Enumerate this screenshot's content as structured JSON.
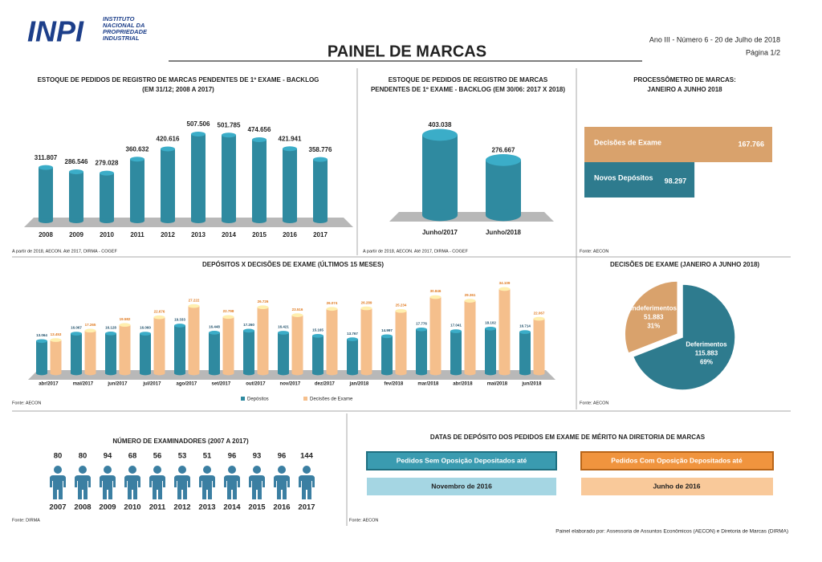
{
  "header": {
    "logo": "INPI",
    "institute": [
      "INSTITUTO",
      "NACIONAL DA",
      "PROPRIEDADE",
      "INDUSTRIAL"
    ],
    "title": "PAINEL DE MARCAS",
    "edition": "Ano III - Número 6 - 20 de Julho de 2018",
    "page": "Página 1/2"
  },
  "chart_data": [
    {
      "type": "bar",
      "title": "ESTOQUE DE PEDIDOS DE REGISTRO DE MARCAS PENDENTES DE 1º EXAME - BACKLOG",
      "subtitle": "(EM 31/12; 2008 A 2017)",
      "categories": [
        "2008",
        "2009",
        "2010",
        "2011",
        "2012",
        "2013",
        "2014",
        "2015",
        "2016",
        "2017"
      ],
      "values": [
        311807,
        286546,
        279028,
        360632,
        420616,
        507506,
        501785,
        474656,
        421941,
        358776
      ],
      "value_labels": [
        "311.807",
        "286.546",
        "279.028",
        "360.632",
        "420.616",
        "507.506",
        "501.785",
        "474.656",
        "421.941",
        "358.776"
      ],
      "color": "#2f8aa0",
      "source": "A partir de 2018, AECON. Até 2017, DIRMA - COGEF"
    },
    {
      "type": "bar",
      "title": "ESTOQUE DE PEDIDOS DE REGISTRO DE MARCAS",
      "subtitle": "PENDENTES DE 1º EXAME - BACKLOG (EM 30/06: 2017 X 2018)",
      "categories": [
        "Junho/2017",
        "Junho/2018"
      ],
      "values": [
        403038,
        276667
      ],
      "value_labels": [
        "403.038",
        "276.667"
      ],
      "color": "#2f8aa0",
      "source": "A partir de 2018, AECON. Até 2017, DIRMA - COGEF"
    },
    {
      "type": "hbar",
      "title": "PROCESSÔMETRO DE MARCAS:",
      "subtitle": "JANEIRO A JUNHO 2018",
      "categories": [
        "Decisões de Exame",
        "Novos Depósitos"
      ],
      "values": [
        167766,
        98297
      ],
      "value_labels": [
        "167.766",
        "98.297"
      ],
      "colors": [
        "#d9a26c",
        "#2e7b8e"
      ],
      "source": "Fonte: AECON"
    },
    {
      "type": "bar",
      "title": "DEPÓSITOS X DECISÕES DE EXAME (ÚLTIMOS 15 MESES)",
      "categories": [
        "abr/2017",
        "mai/2017",
        "jun/2017",
        "jul/2017",
        "ago/2017",
        "set/2017",
        "out/2017",
        "nov/2017",
        "dez/2017",
        "jan/2018",
        "fev/2018",
        "mar/2018",
        "abr/2018",
        "mai/2018",
        "jun/2018"
      ],
      "series": [
        {
          "name": "Depósitos",
          "color": "#2f8aa0",
          "values": [
            13064,
            16067,
            16128,
            16060,
            19333,
            16448,
            17260,
            16421,
            15165,
            13767,
            14997,
            17776,
            17041,
            18102,
            16714
          ],
          "value_labels": [
            "13.064",
            "16.067",
            "16.128",
            "16.060",
            "19.333",
            "16.448",
            "17.260",
            "16.421",
            "15.165",
            "13.767",
            "14.997",
            "17.776",
            "17.041",
            "18.102",
            "16.714"
          ]
        },
        {
          "name": "Decisões de Exame",
          "color": "#f5bf8c",
          "values": [
            13453,
            17265,
            19582,
            22676,
            27222,
            22798,
            26726,
            23516,
            26074,
            26289,
            25234,
            30846,
            29361,
            34109,
            22067
          ],
          "value_labels": [
            "13.453",
            "17.265",
            "19.582",
            "22.676",
            "27.222",
            "22.798",
            "26.726",
            "23.516",
            "26.074",
            "26.289",
            "25.234",
            "30.846",
            "29.361",
            "34.109",
            "22.067"
          ]
        }
      ],
      "source": "Fonte: AECON"
    },
    {
      "type": "pie",
      "title": "DECISÕES DE EXAME (JANEIRO A JUNHO 2018)",
      "categories": [
        "Deferimentos",
        "Indeferimentos"
      ],
      "values": [
        115883,
        51883
      ],
      "value_labels": [
        "115.883",
        "51.883"
      ],
      "percent_labels": [
        "69%",
        "31%"
      ],
      "colors": [
        "#2e7b8e",
        "#d9a26c"
      ],
      "source": "Fonte: AECON"
    },
    {
      "type": "pictogram",
      "title": "NÚMERO DE EXAMINADORES (2007 A 2017)",
      "categories": [
        "2007",
        "2008",
        "2009",
        "2010",
        "2011",
        "2012",
        "2013",
        "2014",
        "2015",
        "2016",
        "2017"
      ],
      "values": [
        80,
        80,
        94,
        68,
        56,
        53,
        51,
        96,
        93,
        96,
        144
      ],
      "color": "#3b7fa2",
      "source": "Fonte: DIRMA"
    }
  ],
  "dates": {
    "title": "DATAS DE DEPÓSITO DOS PEDIDOS EM EXAME DE MÉRITO NA DIRETORIA DE MARCAS",
    "items": [
      {
        "label": "Pedidos Sem Oposição Depositados até",
        "date": "Novembro de 2016"
      },
      {
        "label": "Pedidos Com Oposição Depositados até",
        "date": "Junho de 2016"
      }
    ],
    "source": "Fonte: AECON"
  },
  "footer": "Painel elaborado por: Assessoria de Assuntos Econômicos (AECON) e Diretoria de Marcas (DIRMA)"
}
